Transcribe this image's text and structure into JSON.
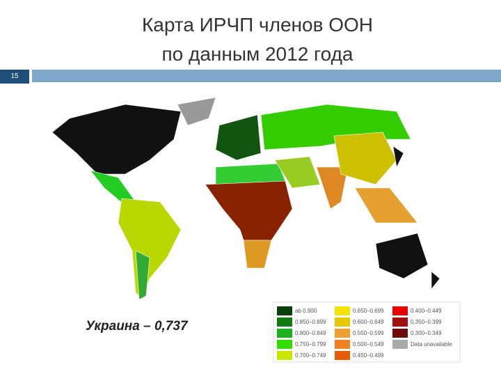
{
  "slide_number": "15",
  "title": [
    "Карта ИРЧП членов ООН",
    "по данным 2012 года"
  ],
  "annotation": "Украина – 0,737",
  "legend": [
    {
      "label": "ab 0.900",
      "color": "#0b3f0b"
    },
    {
      "label": "0.850–0.899",
      "color": "#137a13"
    },
    {
      "label": "0.800–0.849",
      "color": "#1fb01f"
    },
    {
      "label": "0.750–0.799",
      "color": "#33dd00"
    },
    {
      "label": "0.700–0.749",
      "color": "#c8e600"
    },
    {
      "label": "0.650–0.699",
      "color": "#f2e600"
    },
    {
      "label": "0.600–0.649",
      "color": "#e6c800"
    },
    {
      "label": "0.550–0.599",
      "color": "#f0a030"
    },
    {
      "label": "0.500–0.549",
      "color": "#f08020"
    },
    {
      "label": "0.450–0.499",
      "color": "#e65a00"
    },
    {
      "label": "0.400–0.449",
      "color": "#e60000"
    },
    {
      "label": "0.350–0.399",
      "color": "#a01010"
    },
    {
      "label": "0.300–0.349",
      "color": "#6e0a0a"
    },
    {
      "label": "Data unavailable",
      "color": "#aaaaaa"
    }
  ]
}
